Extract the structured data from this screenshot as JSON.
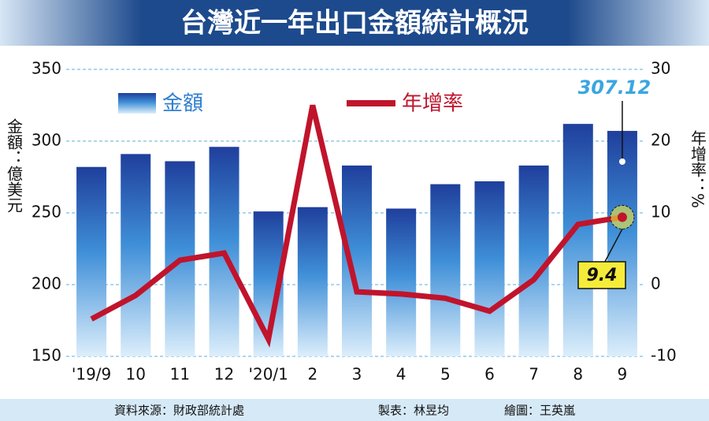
{
  "chart_data": {
    "type": "combo",
    "title": "台灣近一年出口金額統計概況",
    "y_label": "金額：億美元",
    "y2_label": "年增率：%",
    "categories": [
      "'19/9",
      "10",
      "11",
      "12",
      "'20/1",
      "2",
      "3",
      "4",
      "5",
      "6",
      "7",
      "8",
      "9"
    ],
    "series": [
      {
        "name": "金額",
        "type": "bar",
        "color": "#1f3f9c",
        "values": [
          282,
          291,
          286,
          296,
          251,
          254,
          283,
          253,
          270,
          272,
          283,
          312,
          307.12
        ]
      },
      {
        "name": "年增率",
        "type": "line",
        "axis": "y2",
        "color": "#c0142c",
        "values": [
          -4.8,
          -1.5,
          3.4,
          4.4,
          -7.6,
          25.0,
          -1.0,
          -1.3,
          -1.9,
          -3.7,
          0.7,
          8.4,
          9.4
        ]
      }
    ],
    "ylim": [
      150,
      350
    ],
    "yticks": [
      150,
      200,
      250,
      300,
      350
    ],
    "y2lim": [
      -10,
      30
    ],
    "y2ticks": [
      -10,
      0,
      10,
      20,
      30
    ],
    "grid": true,
    "source": "資料來源：財政部統計處",
    "maker": "製表：林昱均",
    "illustrator": "繪圖：王英嵐"
  }
}
